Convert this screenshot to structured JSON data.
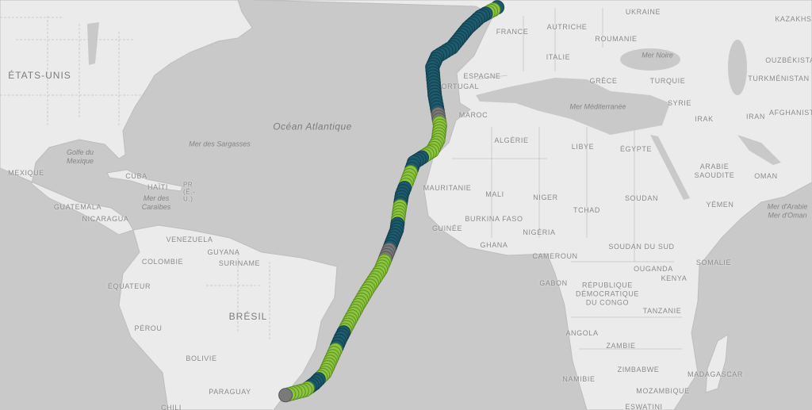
{
  "map": {
    "colors": {
      "ocean": "#c9c9c9",
      "land": "#ebebeb",
      "border": "#bdbdbd",
      "green": "#8cc63f",
      "teal": "#1d5b6e",
      "gray": "#7a7a7a"
    },
    "countries": [
      "ÉTATS-UNIS",
      "MEXIQUE",
      "CUBA",
      "HAÏTI",
      "PR (É.-U.)",
      "GUATEMALA",
      "NICARAGUA",
      "VENEZUELA",
      "GUYANA",
      "SURINAME",
      "COLOMBIE",
      "ÉQUATEUR",
      "PÉROU",
      "BRÉSIL",
      "BOLIVIE",
      "PARAGUAY",
      "CHILI",
      "FRANCE",
      "ESPAGNE",
      "PORTUGAL",
      "ITALIE",
      "AUTRICHE",
      "UKRAINE",
      "ROUMANIE",
      "GRÈCE",
      "TURQUIE",
      "SYRIE",
      "IRAK",
      "IRAN",
      "AFGHANISTAN",
      "TURKMÉNISTAN",
      "OUZBÉKISTAN",
      "KAZAKHSTAN",
      "MAROC",
      "ALGÉRIE",
      "LIBYE",
      "ÉGYPTE",
      "ARABIE SAOUDITE",
      "OMAN",
      "YÉMEN",
      "MAURITANIE",
      "MALI",
      "NIGER",
      "TCHAD",
      "SOUDAN",
      "BURKINA FASO",
      "GUINÉE",
      "GHANA",
      "NIGÉRIA",
      "CAMEROUN",
      "GABON",
      "SOUDAN DU SUD",
      "SOMALIE",
      "OUGANDA",
      "KENYA",
      "RÉPUBLIQUE DÉMOCRATIQUE DU CONGO",
      "TANZANIE",
      "ANGOLA",
      "ZAMBIE",
      "ZIMBABWE",
      "NAMIBIE",
      "MOZAMBIQUE",
      "MADAGASCAR",
      "ESWATINI"
    ],
    "seas": [
      "Océan Atlantique",
      "Mer des Sargasses",
      "Golfe du Mexique",
      "Mer des Caraïbes",
      "Mer Noire",
      "Mer Méditerranée",
      "Mer d'Arabie",
      "Mer d'Oman"
    ]
  },
  "route": [
    {
      "lat": 52.2,
      "lon": 2.0,
      "color": "teal"
    },
    {
      "lat": 51.9,
      "lon": 1.2,
      "color": "green"
    },
    {
      "lat": 51.0,
      "lon": -1.5,
      "color": "teal"
    },
    {
      "lat": 49.5,
      "lon": -4.1,
      "color": "teal"
    },
    {
      "lat": 46.8,
      "lon": -7.4,
      "color": "teal"
    },
    {
      "lat": 45.5,
      "lon": -10.5,
      "color": "teal"
    },
    {
      "lat": 43.9,
      "lon": -11.5,
      "color": "teal"
    },
    {
      "lat": 39.6,
      "lon": -11.0,
      "color": "teal"
    },
    {
      "lat": 36.5,
      "lon": -10.3,
      "color": "gray"
    },
    {
      "lat": 34.5,
      "lon": -9.9,
      "color": "green"
    },
    {
      "lat": 32.0,
      "lon": -10.3,
      "color": "green"
    },
    {
      "lat": 30.1,
      "lon": -11.5,
      "color": "green"
    },
    {
      "lat": 28.0,
      "lon": -15.3,
      "color": "teal"
    },
    {
      "lat": 25.0,
      "lon": -16.5,
      "color": "green"
    },
    {
      "lat": 22.0,
      "lon": -17.8,
      "color": "teal"
    },
    {
      "lat": 18.5,
      "lon": -18.4,
      "color": "green"
    },
    {
      "lat": 15.0,
      "lon": -18.9,
      "color": "teal"
    },
    {
      "lat": 11.0,
      "lon": -20.5,
      "color": "gray"
    },
    {
      "lat": 6.9,
      "lon": -22.2,
      "color": "green"
    },
    {
      "lat": 3.0,
      "lon": -24.8,
      "color": "green"
    },
    {
      "lat": -0.5,
      "lon": -26.9,
      "color": "green"
    },
    {
      "lat": -4.0,
      "lon": -28.8,
      "color": "green"
    },
    {
      "lat": -7.2,
      "lon": -30.5,
      "color": "teal"
    },
    {
      "lat": -11.0,
      "lon": -32.2,
      "color": "green"
    },
    {
      "lat": -14.4,
      "lon": -33.8,
      "color": "green"
    },
    {
      "lat": -16.5,
      "lon": -36.0,
      "color": "teal"
    },
    {
      "lat": -17.8,
      "lon": -37.9,
      "color": "green"
    },
    {
      "lat": -18.8,
      "lon": -42.0,
      "color": "gray"
    }
  ]
}
